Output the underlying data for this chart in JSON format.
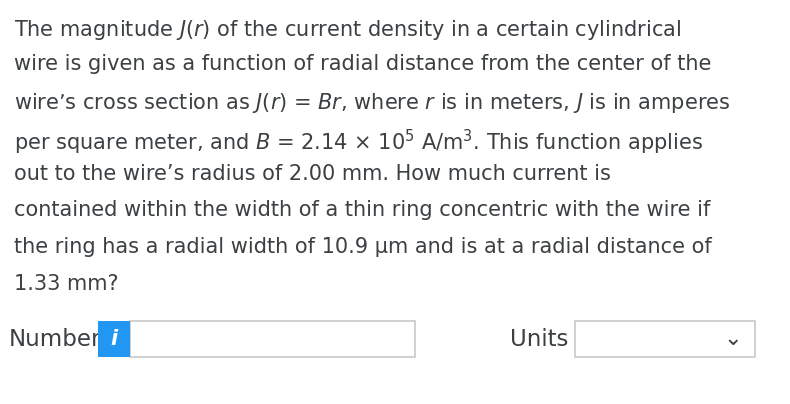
{
  "background_color": "#ffffff",
  "text_color": "#3c4043",
  "line_texts": [
    "The magnitude $J$($r$) of the current density in a certain cylindrical",
    "wire is given as a function of radial distance from the center of the",
    "wire’s cross section as $J$($r$) = $Br$, where $r$ is in meters, $J$ is in amperes",
    "per square meter, and $B$ = 2.14 × 10$^5$ A/m$^3$. This function applies",
    "out to the wire’s radius of 2.00 mm. How much current is",
    "contained within the width of a thin ring concentric with the wire if",
    "the ring has a radial width of 10.9 μm and is at a radial distance of",
    "1.33 mm?"
  ],
  "number_label": "Number",
  "units_label": "Units",
  "icon_color": "#2196f3",
  "icon_text": "i",
  "icon_text_color": "#ffffff",
  "input_box_color": "#ffffff",
  "input_box_border": "#c8c8c8",
  "units_box_border": "#c8c8c8",
  "font_size": 15.0,
  "label_font_size": 16.5
}
